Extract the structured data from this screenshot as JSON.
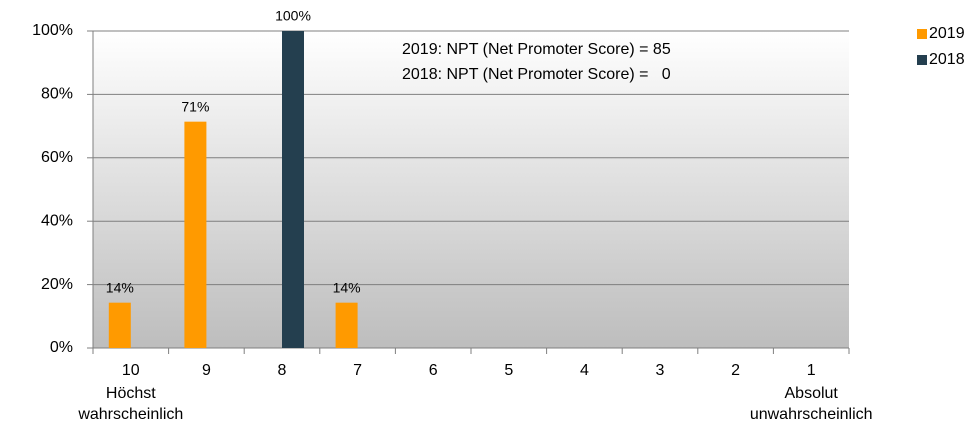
{
  "chart_data": {
    "type": "bar",
    "categories": [
      "10",
      "9",
      "8",
      "7",
      "6",
      "5",
      "4",
      "3",
      "2",
      "1"
    ],
    "annotations": [
      [
        "Höchst",
        "wahrscheinlich"
      ],
      [
        "Absolut",
        "unwahrscheinlich"
      ]
    ],
    "notes": [
      "2019: NPT (Net Promoter Score) = 85",
      "2018: NPT (Net Promoter Score) =   0"
    ],
    "series": [
      {
        "name": "2019",
        "color": "#ff9a00",
        "values": [
          14.3,
          71.4,
          0,
          14.3,
          0,
          0,
          0,
          0,
          0,
          0
        ],
        "value_labels": [
          "14%",
          "71%",
          null,
          "14%",
          null,
          null,
          null,
          null,
          null,
          null
        ]
      },
      {
        "name": "2018",
        "color": "#243f4f",
        "values": [
          0,
          0,
          100,
          0,
          0,
          0,
          0,
          0,
          0,
          0
        ],
        "value_labels": [
          null,
          null,
          "100%",
          null,
          null,
          null,
          null,
          null,
          null,
          null
        ]
      }
    ],
    "ylim": [
      0,
      100
    ],
    "yticks": [
      {
        "value": 0,
        "label": "0%"
      },
      {
        "value": 20,
        "label": "20%"
      },
      {
        "value": 40,
        "label": "40%"
      },
      {
        "value": 60,
        "label": "60%"
      },
      {
        "value": 80,
        "label": "80%"
      },
      {
        "value": 100,
        "label": "100%"
      }
    ],
    "grid": true,
    "legend": "right"
  }
}
